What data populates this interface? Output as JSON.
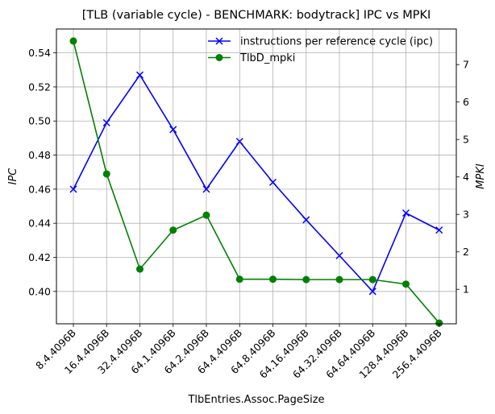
{
  "chart_data": {
    "type": "line",
    "title": "[TLB (variable cycle) - BENCHMARK: bodytrack]  IPC vs MPKI",
    "xlabel": "TlbEntries.Assoc.PageSize",
    "ylabel_left": "IPC",
    "ylabel_right": "MPKI",
    "categories": [
      "8.4.4096B",
      "16.4.4096B",
      "32.4.4096B",
      "64.1.4096B",
      "64.2.4096B",
      "64.4.4096B",
      "64.8.4096B",
      "64.16.4096B",
      "64.32.4096B",
      "64.64.4096B",
      "128.4.4096B",
      "256.4.4096B"
    ],
    "ylim_left": [
      0.381,
      0.554
    ],
    "ylim_right": [
      0.08,
      7.95
    ],
    "yticks_left": [
      "0.40",
      "0.42",
      "0.44",
      "0.46",
      "0.48",
      "0.50",
      "0.52",
      "0.54"
    ],
    "yticks_right": [
      "1",
      "2",
      "3",
      "4",
      "5",
      "6",
      "7"
    ],
    "grid": true,
    "legend_position": "top-right",
    "series": [
      {
        "name": "instructions per reference cycle (ipc)",
        "axis": "left",
        "color": "#0000ff",
        "marker": "x",
        "values": [
          0.46,
          0.499,
          0.527,
          0.495,
          0.46,
          0.488,
          0.464,
          0.442,
          0.421,
          0.4,
          0.446,
          0.436
        ]
      },
      {
        "name": "TlbD_mpki",
        "axis": "right",
        "color": "#008000",
        "marker": "o",
        "values": [
          7.63,
          4.08,
          1.54,
          2.58,
          2.98,
          1.27,
          1.27,
          1.26,
          1.26,
          1.26,
          1.14,
          0.1
        ]
      }
    ]
  }
}
